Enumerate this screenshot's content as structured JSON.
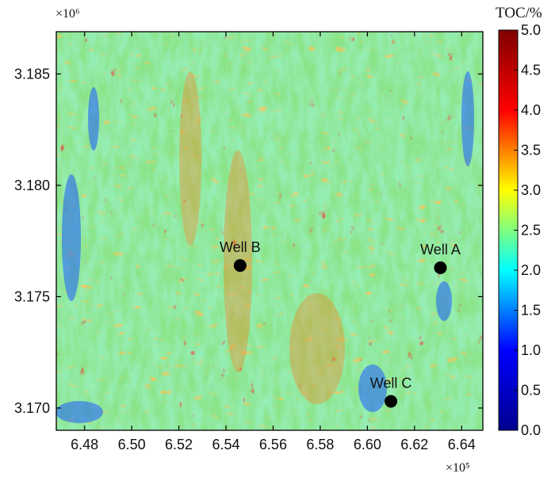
{
  "map": {
    "x_axis": {
      "ticks": [
        "6.48",
        "6.50",
        "6.52",
        "6.54",
        "6.56",
        "6.58",
        "6.60",
        "6.62",
        "6.64"
      ],
      "tick_values": [
        648000,
        650000,
        652000,
        654000,
        656000,
        658000,
        660000,
        662000,
        664000
      ],
      "range": [
        646800,
        664900
      ],
      "multiplier_label": "×10⁵"
    },
    "y_axis": {
      "ticks": [
        "3.185",
        "3.180",
        "3.175",
        "3.170"
      ],
      "tick_values": [
        3185000,
        3180000,
        3175000,
        3170000
      ],
      "range": [
        3169000,
        3186900
      ],
      "multiplier_label": "×10⁶"
    },
    "wells": [
      {
        "name": "Well B",
        "x": 654600,
        "y": 3176400
      },
      {
        "name": "Well A",
        "x": 663100,
        "y": 3176300
      },
      {
        "name": "Well C",
        "x": 661000,
        "y": 3170300
      }
    ]
  },
  "colorbar": {
    "title": "TOC/%",
    "min": 0.0,
    "max": 5.0,
    "ticks": [
      "5.0",
      "4.5",
      "4.0",
      "3.5",
      "3.0",
      "2.5",
      "2.0",
      "1.5",
      "1.0",
      "0.5",
      "0.0"
    ],
    "colors": [
      "#00008f",
      "#0000ff",
      "#00ffff",
      "#ffff00",
      "#ff0000",
      "#800000"
    ]
  }
}
